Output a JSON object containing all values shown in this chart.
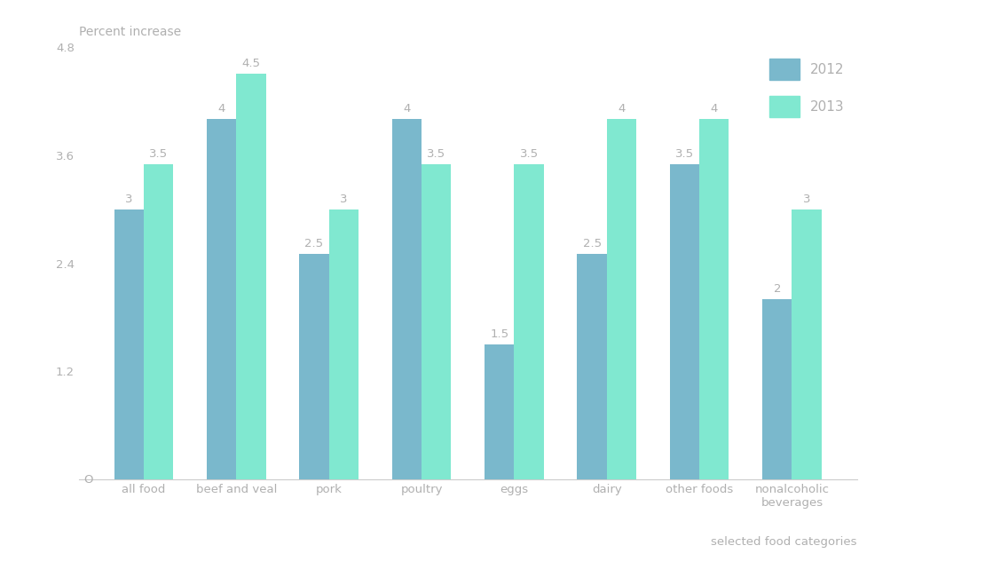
{
  "categories": [
    "all food",
    "beef and veal",
    "pork",
    "poultry",
    "eggs",
    "dairy",
    "other foods",
    "nonalcoholic\nbeverages"
  ],
  "values_2012": [
    3.0,
    4.0,
    2.5,
    4.0,
    1.5,
    2.5,
    3.5,
    2.0
  ],
  "values_2013": [
    3.5,
    4.5,
    3.0,
    3.5,
    3.5,
    4.0,
    4.0,
    3.0
  ],
  "color_2012": "#7ab8cc",
  "color_2013": "#80e8d0",
  "ylim": [
    0,
    4.8
  ],
  "yticks": [
    1.2,
    2.4,
    3.6,
    4.8
  ],
  "ytick_labels": [
    "1.2",
    "2.4",
    "3.6",
    "4.8"
  ],
  "legend_labels": [
    "2012",
    "2013"
  ],
  "bar_width": 0.32,
  "text_color": "#b0b0b0",
  "label_fontsize": 9.5,
  "tick_fontsize": 9.5,
  "title_fontsize": 10,
  "legend_fontsize": 11,
  "xlabel": "selected food categories",
  "title": "Percent increase"
}
